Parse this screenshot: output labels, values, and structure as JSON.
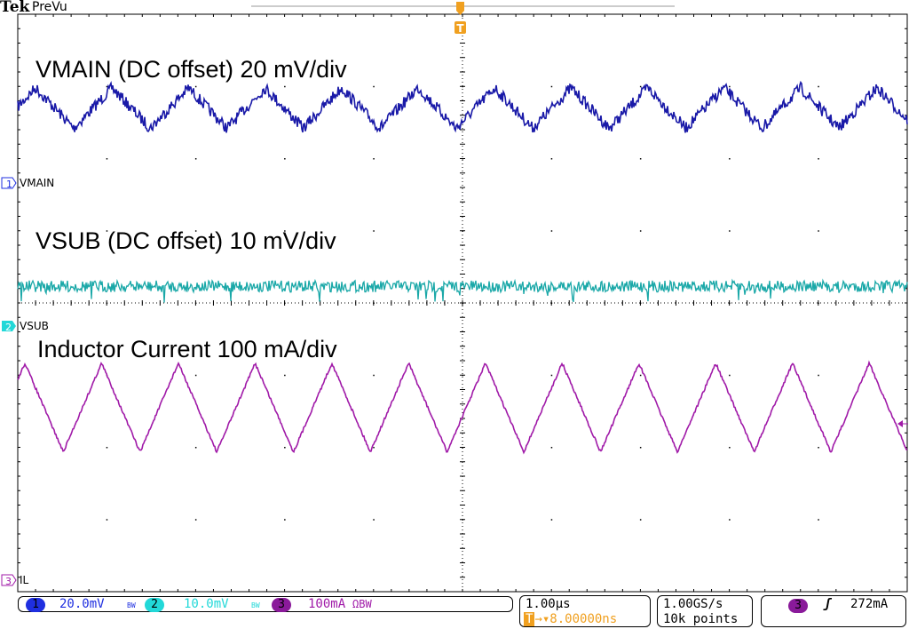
{
  "header": {
    "brand": "Tek",
    "mode": "PreVu"
  },
  "annotations": {
    "vmain": "VMAIN (DC offset) 20 mV/div",
    "vsub": "VSUB (DC offset) 10 mV/div",
    "il": "Inductor Current 100 mA/div"
  },
  "channels": [
    {
      "number": "1",
      "label": "VMAIN",
      "scale": "20.0mV",
      "bw": "BW",
      "color": "#1a1aa8",
      "pill_color": "#1f2fe0"
    },
    {
      "number": "2",
      "label": "VSUB",
      "scale": "10.0mV",
      "bw": "BW",
      "color": "#1aa8a8",
      "pill_color": "#22d8d8"
    },
    {
      "number": "3",
      "label": "IL",
      "scale": "100mA",
      "bw": "ΩBW",
      "color": "#a01aa8",
      "pill_color": "#8a1a9a"
    }
  ],
  "timebase": {
    "scale": "1.00µs",
    "trigger_icon": "T",
    "delay": "8.00000ns",
    "trigger_color": "#f0a020"
  },
  "acquisition": {
    "sample_rate": "1.00GS/s",
    "record_length": "10k points"
  },
  "trigger": {
    "source": "3",
    "slope_icon": "rising-edge-icon",
    "level": "272mA"
  },
  "chart_data": {
    "type": "line",
    "title": "",
    "divisions": {
      "horizontal": 10,
      "vertical": 8
    },
    "x_unit": "µs",
    "x_per_div": 1.0,
    "grid": true,
    "series": [
      {
        "name": "VMAIN",
        "shape": "noisy triangle",
        "period_us": 0.86,
        "amplitude_div": 0.28,
        "noise_div": 0.08,
        "position_div": 2.7
      },
      {
        "name": "VSUB",
        "shape": "noise",
        "amplitude_div": 0.0,
        "noise_div": 0.1,
        "position_div": 0.23
      },
      {
        "name": "IL",
        "shape": "triangle",
        "period_us": 0.863,
        "peak_to_peak_mA": 123,
        "first_peak_us": 0.08,
        "position_div": -1.45
      }
    ]
  }
}
